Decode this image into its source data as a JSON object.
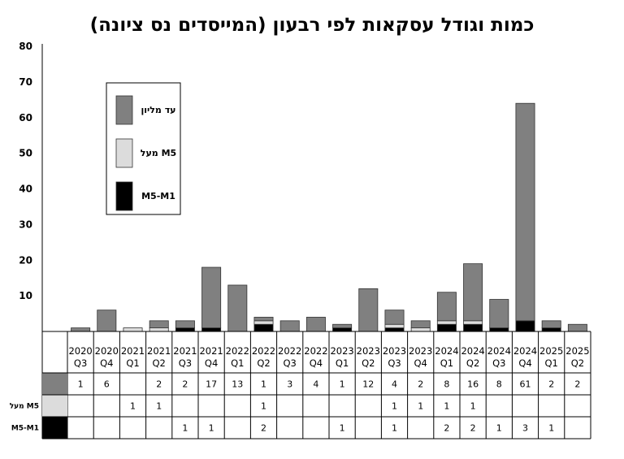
{
  "chart_data": {
    "type": "bar",
    "stacked": true,
    "title": "כמות וגודל עסקאות לפי רבעון (המייסדים נס ציונה)",
    "ylim": [
      0,
      80
    ],
    "yticks": [
      "10",
      "20",
      "30",
      "40",
      "50",
      "60",
      "70",
      "80"
    ],
    "categories": [
      [
        "2020",
        "Q3"
      ],
      [
        "2020",
        "Q4"
      ],
      [
        "2021",
        "Q1"
      ],
      [
        "2021",
        "Q2"
      ],
      [
        "2021",
        "Q3"
      ],
      [
        "2021",
        "Q4"
      ],
      [
        "2022",
        "Q1"
      ],
      [
        "2022",
        "Q2"
      ],
      [
        "2022",
        "Q3"
      ],
      [
        "2022",
        "Q4"
      ],
      [
        "2023",
        "Q1"
      ],
      [
        "2023",
        "Q2"
      ],
      [
        "2023",
        "Q3"
      ],
      [
        "2023",
        "Q4"
      ],
      [
        "2024",
        "Q1"
      ],
      [
        "2024",
        "Q2"
      ],
      [
        "2024",
        "Q3"
      ],
      [
        "2024",
        "Q4"
      ],
      [
        "2025",
        "Q1"
      ],
      [
        "2025",
        "Q2"
      ]
    ],
    "series": [
      {
        "name": "M5-M1",
        "color": "#000000",
        "values": [
          0,
          0,
          0,
          0,
          1,
          1,
          0,
          2,
          0,
          0,
          1,
          0,
          1,
          0,
          2,
          2,
          1,
          3,
          1,
          0
        ],
        "row_values": [
          "",
          "",
          "",
          "",
          "1",
          "1",
          "",
          "2",
          "",
          "",
          "1",
          "",
          "1",
          "",
          "2",
          "2",
          "1",
          "3",
          "1",
          ""
        ],
        "row_label": "M5-M1"
      },
      {
        "name": "מעל M5",
        "color": "#dcdcdc",
        "values": [
          0,
          0,
          1,
          1,
          0,
          0,
          0,
          1,
          0,
          0,
          0,
          0,
          1,
          1,
          1,
          1,
          0,
          0,
          0,
          0
        ],
        "row_values": [
          "",
          "",
          "1",
          "1",
          "",
          "",
          "",
          "1",
          "",
          "",
          "",
          "",
          "1",
          "1",
          "1",
          "1",
          "",
          "",
          "",
          ""
        ],
        "row_label": "מעל M5"
      },
      {
        "name": "עד מליון",
        "color": "#808080",
        "values": [
          1,
          6,
          0,
          2,
          2,
          17,
          13,
          1,
          3,
          4,
          1,
          12,
          4,
          2,
          8,
          16,
          8,
          61,
          2,
          2
        ],
        "row_values": [
          "1",
          "6",
          "",
          "2",
          "2",
          "17",
          "13",
          "1",
          "3",
          "4",
          "1",
          "12",
          "4",
          "2",
          "8",
          "16",
          "8",
          "61",
          "2",
          "2"
        ],
        "row_label": ""
      }
    ],
    "legend": [
      {
        "label": "עד מליון",
        "color": "#808080"
      },
      {
        "label": "מעל M5",
        "color": "#dcdcdc"
      },
      {
        "label": "M5-M1",
        "color": "#000000"
      }
    ],
    "legend_position": "top-left",
    "grid": false
  }
}
